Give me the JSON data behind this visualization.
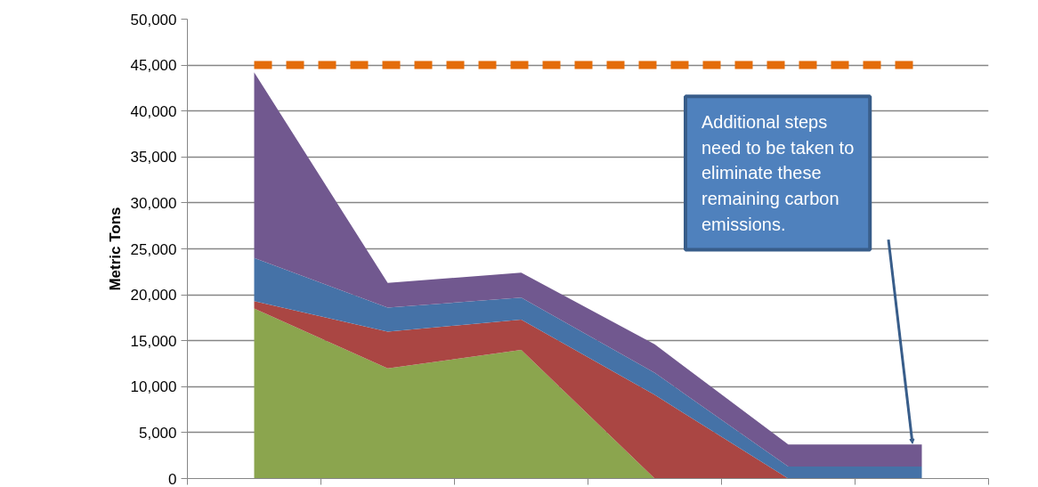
{
  "chart_data": {
    "type": "area",
    "stacked": true,
    "ylabel": "Metric Tons",
    "categories": [
      null,
      null,
      null,
      null,
      null,
      null
    ],
    "series": [
      {
        "color": "#8ba54e",
        "values": [
          18500,
          12000,
          14000,
          0,
          0,
          0
        ]
      },
      {
        "color": "#aa4643",
        "values": [
          800,
          4000,
          3300,
          9100,
          0,
          0
        ]
      },
      {
        "color": "#4572a7",
        "values": [
          4700,
          2600,
          2400,
          2400,
          1300,
          1300
        ]
      },
      {
        "color": "#71588f",
        "values": [
          20200,
          2700,
          2700,
          3100,
          2400,
          2400
        ]
      }
    ],
    "ylim": [
      0,
      50000
    ],
    "yticks": [
      {
        "value": 0,
        "label": "0"
      },
      {
        "value": 5000,
        "label": "5,000"
      },
      {
        "value": 10000,
        "label": "10,000"
      },
      {
        "value": 15000,
        "label": "15,000"
      },
      {
        "value": 20000,
        "label": "20,000"
      },
      {
        "value": 25000,
        "label": "25,000"
      },
      {
        "value": 30000,
        "label": "30,000"
      },
      {
        "value": 35000,
        "label": "35,000"
      },
      {
        "value": 40000,
        "label": "40,000"
      },
      {
        "value": 45000,
        "label": "45,000"
      },
      {
        "value": 50000,
        "label": "50,000"
      }
    ],
    "grid": "y",
    "tick_labels": "y",
    "ref_lines": [
      {
        "axis": "y",
        "value": 45000,
        "color": "#e46c0a",
        "line_style": "dashed"
      }
    ],
    "annotations": [
      "Additional steps need to be taken to eliminate these remaining carbon emissions."
    ]
  }
}
